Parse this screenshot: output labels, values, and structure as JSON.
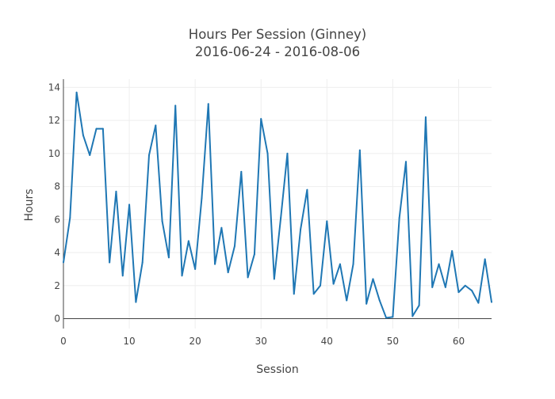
{
  "chart_data": {
    "type": "line",
    "title": "Hours Per Session (Ginney)",
    "subtitle": "2016-06-24 - 2016-08-06",
    "xlabel": "Session",
    "ylabel": "Hours",
    "xlim": [
      0,
      65
    ],
    "ylim": [
      -0.6,
      14.5
    ],
    "xticks": [
      0,
      10,
      20,
      30,
      40,
      50,
      60
    ],
    "yticks": [
      0,
      2,
      4,
      6,
      8,
      10,
      12,
      14
    ],
    "grid": true,
    "line_color": "#1f77b4",
    "x": [
      0,
      1,
      2,
      3,
      4,
      5,
      6,
      7,
      8,
      9,
      10,
      11,
      12,
      13,
      14,
      15,
      16,
      17,
      18,
      19,
      20,
      21,
      22,
      23,
      24,
      25,
      26,
      27,
      28,
      29,
      30,
      31,
      32,
      33,
      34,
      35,
      36,
      37,
      38,
      39,
      40,
      41,
      42,
      43,
      44,
      45,
      46,
      47,
      48,
      49,
      50,
      51,
      52,
      53,
      54,
      55,
      56,
      57,
      58,
      59,
      60,
      61,
      62,
      63,
      64,
      65
    ],
    "y": [
      3.4,
      6.1,
      13.7,
      11.1,
      9.9,
      11.5,
      11.5,
      3.4,
      7.7,
      2.6,
      6.9,
      1.0,
      3.4,
      9.9,
      11.7,
      5.9,
      3.7,
      12.9,
      2.6,
      4.7,
      3.0,
      7.3,
      13.0,
      3.3,
      5.5,
      2.8,
      4.4,
      8.9,
      2.5,
      3.9,
      12.1,
      10.0,
      2.4,
      6.1,
      10.0,
      1.5,
      5.4,
      7.8,
      1.5,
      2.0,
      5.9,
      2.1,
      3.3,
      1.1,
      3.3,
      10.2,
      0.9,
      2.4,
      1.1,
      0.05,
      0.1,
      6.1,
      9.5,
      0.15,
      0.8,
      12.2,
      1.9,
      3.3,
      1.9,
      4.1,
      1.6,
      2.0,
      1.7,
      0.95,
      3.6,
      1.0
    ]
  }
}
